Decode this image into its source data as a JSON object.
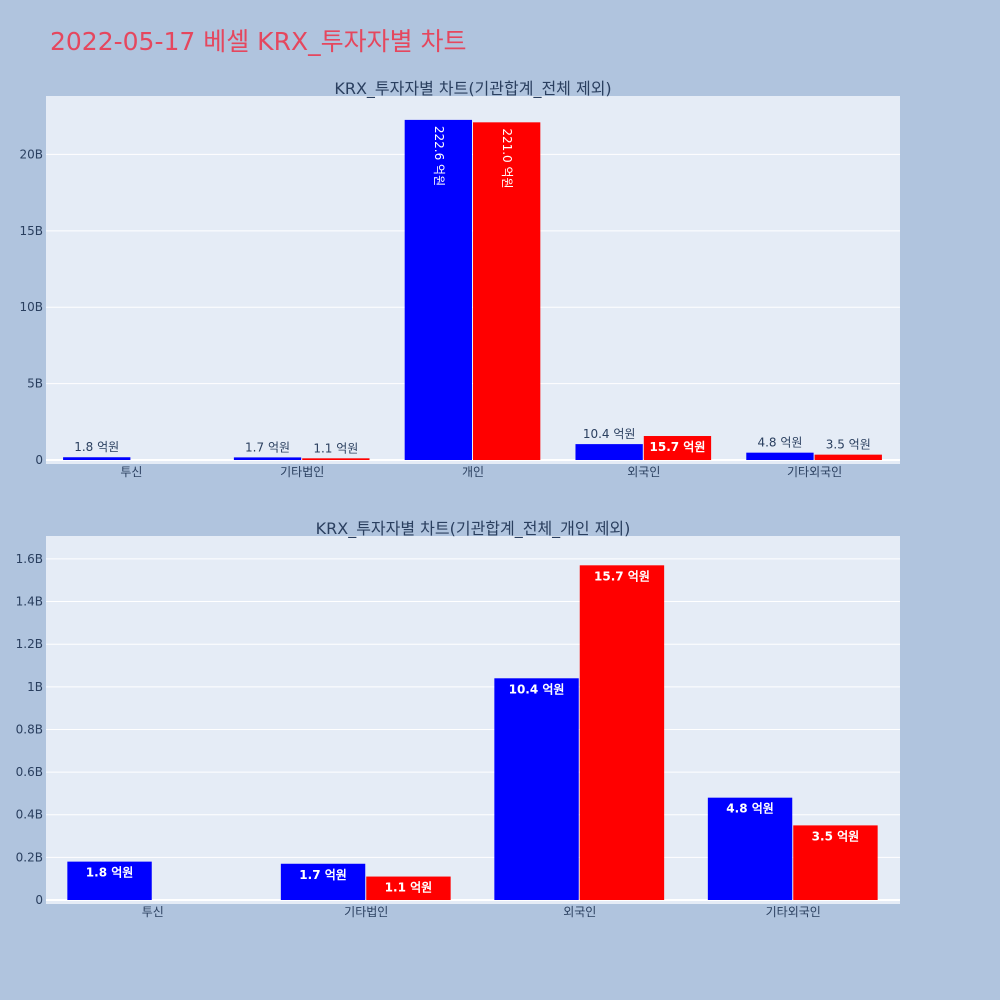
{
  "title": "2022-05-17 베셀 KRX_투자자별 차트",
  "colors": {
    "buy": "#0000ff",
    "sell": "#ff0000",
    "plot_bg": "#e5ecf6",
    "page_bg": "#b0c4de",
    "title": "#e5475e"
  },
  "chart_data": [
    {
      "type": "bar",
      "title": "KRX_투자자별 차트(기관합계_전체 제외)",
      "categories": [
        "투신",
        "기타법인",
        "개인",
        "외국인",
        "기타외국인"
      ],
      "series": [
        {
          "color": "#0000ff",
          "values": [
            180000000,
            170000000,
            22260000000,
            1040000000,
            480000000
          ],
          "labels": [
            "1.8 억원",
            "1.7 억원",
            "222.6 억원",
            "10.4 억원",
            "4.8 억원"
          ]
        },
        {
          "color": "#ff0000",
          "values": [
            null,
            110000000,
            22100000000,
            1570000000,
            350000000
          ],
          "labels": [
            "",
            "1.1 억원",
            "221.0 억원",
            "15.7 억원",
            "3.5 억원"
          ]
        }
      ],
      "ylim": [
        0,
        23300000000
      ],
      "yticks": [
        0,
        5000000000,
        10000000000,
        15000000000,
        20000000000
      ],
      "ytick_labels": [
        "0",
        "5B",
        "10B",
        "15B",
        "20B"
      ],
      "grid": true
    },
    {
      "type": "bar",
      "title": "KRX_투자자별 차트(기관합계_전체_개인 제외)",
      "categories": [
        "투신",
        "기타법인",
        "외국인",
        "기타외국인"
      ],
      "series": [
        {
          "color": "#0000ff",
          "values": [
            180000000,
            170000000,
            1040000000,
            480000000
          ],
          "labels": [
            "1.8 억원",
            "1.7 억원",
            "10.4 억원",
            "4.8 억원"
          ]
        },
        {
          "color": "#ff0000",
          "values": [
            null,
            110000000,
            1570000000,
            350000000
          ],
          "labels": [
            "",
            "1.1 억원",
            "15.7 억원",
            "3.5 억원"
          ]
        }
      ],
      "ylim": [
        0,
        1670000000
      ],
      "yticks": [
        0,
        200000000,
        400000000,
        600000000,
        800000000,
        1000000000,
        1200000000,
        1400000000,
        1600000000
      ],
      "ytick_labels": [
        "0",
        "0.2B",
        "0.4B",
        "0.6B",
        "0.8B",
        "1B",
        "1.2B",
        "1.4B",
        "1.6B"
      ],
      "grid": true
    }
  ]
}
